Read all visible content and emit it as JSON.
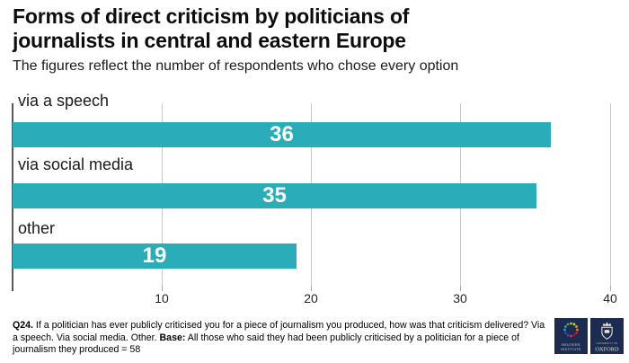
{
  "header": {
    "title_lines": [
      "Forms of direct criticism by politicians of",
      "journalists in central and eastern Europe"
    ],
    "subtitle": "The figures reflect the number of respondents who chose every option"
  },
  "chart_data": {
    "type": "bar",
    "orientation": "horizontal",
    "title": "Forms of direct criticism by politicians of journalists in central and eastern Europe",
    "subtitle": "The figures reflect the number of respondents who chose every option",
    "categories": [
      "via a speech",
      "via social media",
      "other"
    ],
    "values": [
      36,
      35,
      19
    ],
    "xticks": [
      10,
      20,
      30,
      40
    ],
    "xlim": [
      0,
      41
    ],
    "grid": "vertical-gridlines-on",
    "legend": "none",
    "bar_color": "#2aadb9",
    "value_label_color": "#ffffff"
  },
  "footer": {
    "q_label": "Q24.",
    "question": "If a politician has ever publicly criticised you for a piece of journalism you produced, how was that criticism delivered? Via a speech. Via social media. Other.",
    "base_label": "Base:",
    "base_text": "All those who said they had been publicly criticised by a politician for a piece of journalism they produced = 58"
  },
  "logos": {
    "reuters": {
      "line1": "REUTERS",
      "line2": "INSTITUTE"
    },
    "oxford": {
      "line1": "UNIVERSITY OF",
      "line2": "OXFORD"
    }
  },
  "colors": {
    "bar_teal": "#2aadb9",
    "logo_navy": "#1c2b50",
    "gridline_gray": "#c9c9c9",
    "axis_gray": "#595959"
  }
}
